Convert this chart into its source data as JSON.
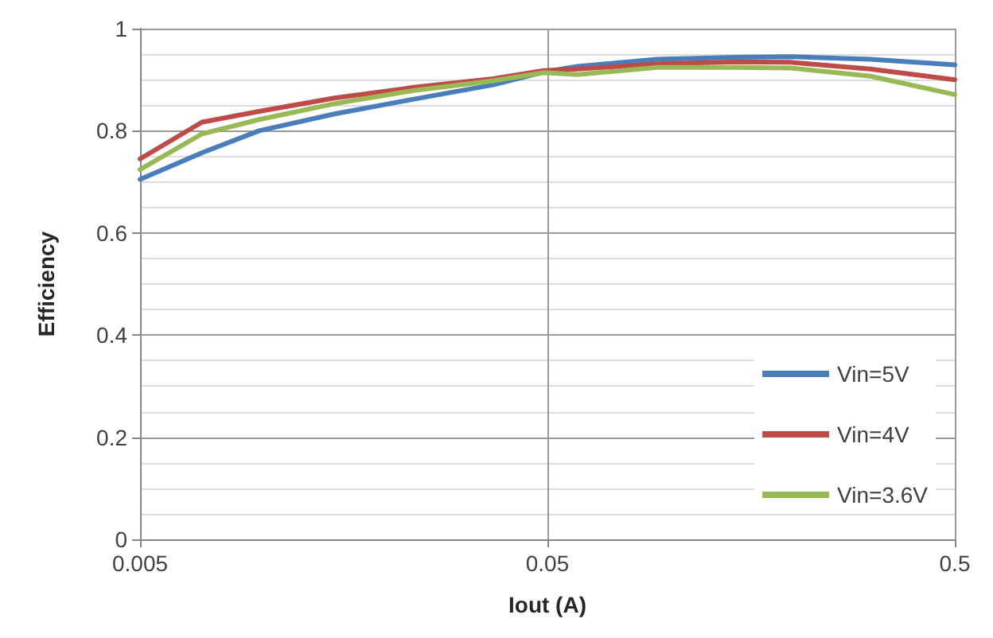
{
  "chart_data": {
    "type": "line",
    "xlabel": "Iout (A)",
    "ylabel": "Efficiency",
    "log": "x",
    "x": [
      0.005,
      0.0071,
      0.0098,
      0.015,
      0.0235,
      0.0368,
      0.049,
      0.0593,
      0.093,
      0.146,
      0.198,
      0.31,
      0.5
    ],
    "series": [
      {
        "name": "Vin=5V",
        "color": "#4a7ebb",
        "values": [
          0.705,
          0.757,
          0.8,
          0.833,
          0.862,
          0.89,
          0.915,
          0.926,
          0.94,
          0.944,
          0.945,
          0.94,
          0.929
        ]
      },
      {
        "name": "Vin=4V",
        "color": "#be4b48",
        "values": [
          0.745,
          0.817,
          0.838,
          0.864,
          0.885,
          0.902,
          0.918,
          0.921,
          0.931,
          0.935,
          0.934,
          0.921,
          0.9
        ]
      },
      {
        "name": "Vin=3.6V",
        "color": "#98b954",
        "values": [
          0.724,
          0.794,
          0.822,
          0.853,
          0.879,
          0.898,
          0.914,
          0.91,
          0.924,
          0.924,
          0.923,
          0.907,
          0.871
        ]
      }
    ],
    "xlim": [
      0.005,
      0.5
    ],
    "xticks": [
      0.005,
      0.05,
      0.5
    ],
    "ylim": [
      0,
      1
    ],
    "yticks": [
      0,
      0.2,
      0.4,
      0.6,
      0.8,
      1
    ],
    "grid": true,
    "legend": "bottom right",
    "marker": "none",
    "line_style": "solid"
  }
}
